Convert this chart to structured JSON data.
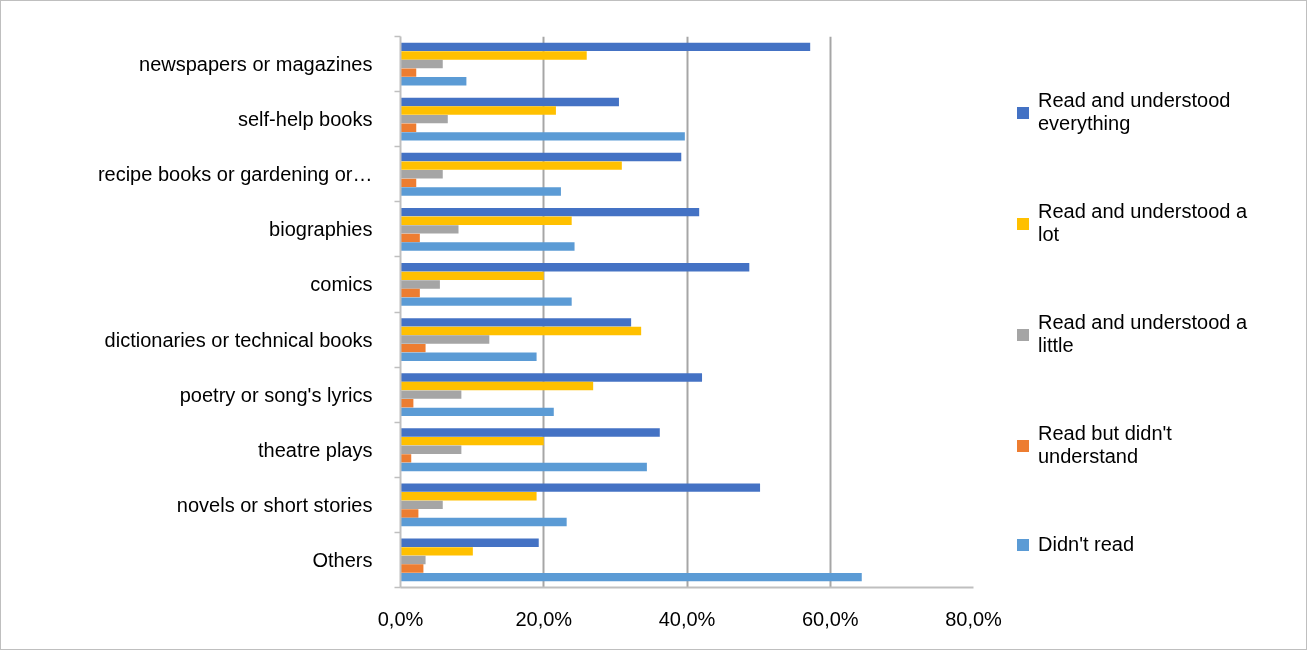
{
  "chart_data": {
    "type": "bar",
    "orientation": "horizontal",
    "categories": [
      "newspapers or magazines",
      "self-help books",
      "recipe books or gardening or…",
      "biographies",
      "comics",
      "dictionaries or technical books",
      "poetry or song's lyrics",
      "theatre plays",
      "novels or short stories",
      "Others"
    ],
    "series": [
      {
        "name": "Read and understood everything",
        "color": "#4472c4",
        "values": [
          57.2,
          30.5,
          39.2,
          41.7,
          48.7,
          32.2,
          42.1,
          36.2,
          50.2,
          19.3
        ]
      },
      {
        "name": "Read and understood a lot",
        "color": "#ffc000",
        "values": [
          26.0,
          21.7,
          30.9,
          23.9,
          20.0,
          33.6,
          26.9,
          20.0,
          19.0,
          10.1
        ]
      },
      {
        "name": "Read and understood a little",
        "color": "#a5a5a5",
        "values": [
          5.9,
          6.6,
          5.9,
          8.1,
          5.5,
          12.4,
          8.5,
          8.5,
          5.9,
          3.5
        ]
      },
      {
        "name": "Read but didn't understand",
        "color": "#ed7d31",
        "values": [
          2.2,
          2.2,
          2.2,
          2.7,
          2.7,
          3.5,
          1.8,
          1.5,
          2.5,
          3.2
        ]
      },
      {
        "name": "Didn't read",
        "color": "#5b9bd5",
        "values": [
          9.2,
          39.7,
          22.4,
          24.3,
          23.9,
          19.0,
          21.4,
          34.4,
          23.2,
          64.4
        ]
      }
    ],
    "xlim": [
      0,
      80
    ],
    "xticks": [
      {
        "value": 0,
        "label": "0,0%"
      },
      {
        "value": 20,
        "label": "20,0%"
      },
      {
        "value": 40,
        "label": "40,0%"
      },
      {
        "value": 60,
        "label": "60,0%"
      },
      {
        "value": 80,
        "label": "80,0%"
      }
    ],
    "grid": "x",
    "legend": "right"
  }
}
